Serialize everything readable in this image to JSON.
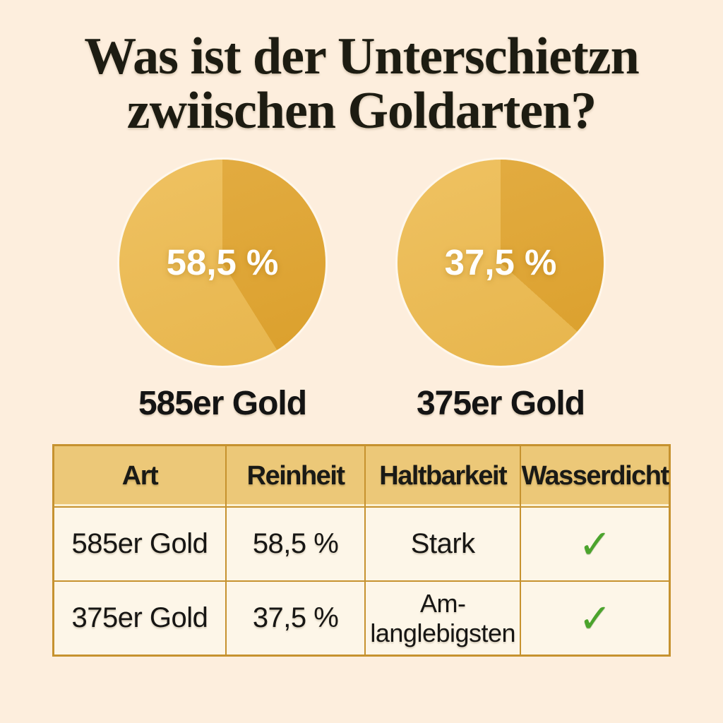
{
  "title": {
    "text": "Was ist der Unterschietzn\nzwiischen Goldarten?"
  },
  "chart_data": [
    {
      "type": "pie",
      "title": "585er Gold",
      "center_label": "58,5 %",
      "slices": [
        {
          "name": "dark-segment",
          "value_pct": 41.5
        },
        {
          "name": "light-segment",
          "value_pct": 58.5
        }
      ],
      "dark_slice_deg": 148,
      "legend": "none"
    },
    {
      "type": "pie",
      "title": "375er Gold",
      "center_label": "37,5 %",
      "slices": [
        {
          "name": "dark-segment",
          "value_pct": 37.5
        },
        {
          "name": "light-segment",
          "value_pct": 62.5
        }
      ],
      "dark_slice_deg": 132,
      "legend": "none"
    }
  ],
  "table": {
    "headers": [
      "Art",
      "Reinheit",
      "Haltbarkeit",
      "Wasserdicht"
    ],
    "rows": [
      {
        "art": "585er Gold",
        "reinheit": "58,5 %",
        "haltbarkeit": "Stark",
        "wasserdicht": "✓"
      },
      {
        "art": "375er Gold",
        "reinheit": "37,5 %",
        "haltbarkeit": "Am-\nlanglebigsten",
        "wasserdicht": "✓"
      }
    ]
  },
  "colors": {
    "background": "#fdeedd",
    "title_text": "#1d1c12",
    "body_text": "#171614",
    "pie_light": "#edbb50",
    "pie_dark": "#e0a42e",
    "table_header_bg": "#ecc878",
    "table_row_bg": "#fdf6e8",
    "table_border": "#c6922f",
    "check_green": "#4ba42c",
    "pie_label_text": "#ffffff"
  }
}
